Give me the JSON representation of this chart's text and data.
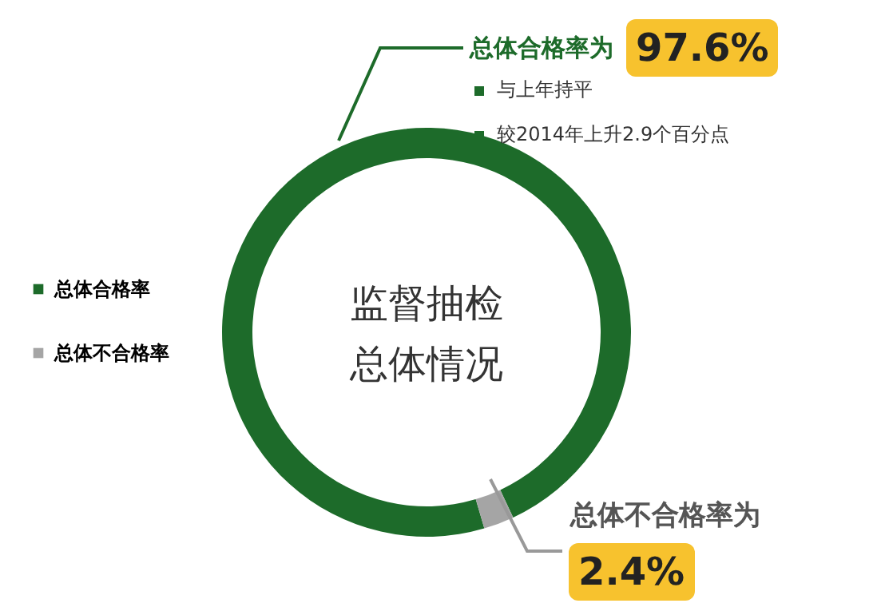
{
  "chart_data": {
    "type": "donut",
    "categories": [
      "总体合格率",
      "总体不合格率"
    ],
    "values": [
      97.6,
      2.4
    ],
    "colors": [
      "#1d6b2a",
      "#a5a5a5"
    ],
    "value_labels": [
      "97.6%",
      "2.4%"
    ],
    "legend": "left",
    "annotations": [
      "总体合格率为",
      "与上年持平",
      "较2014年上升2.9个百分点",
      "总体不合格率为",
      "监督抽检",
      "总体情况"
    ]
  }
}
